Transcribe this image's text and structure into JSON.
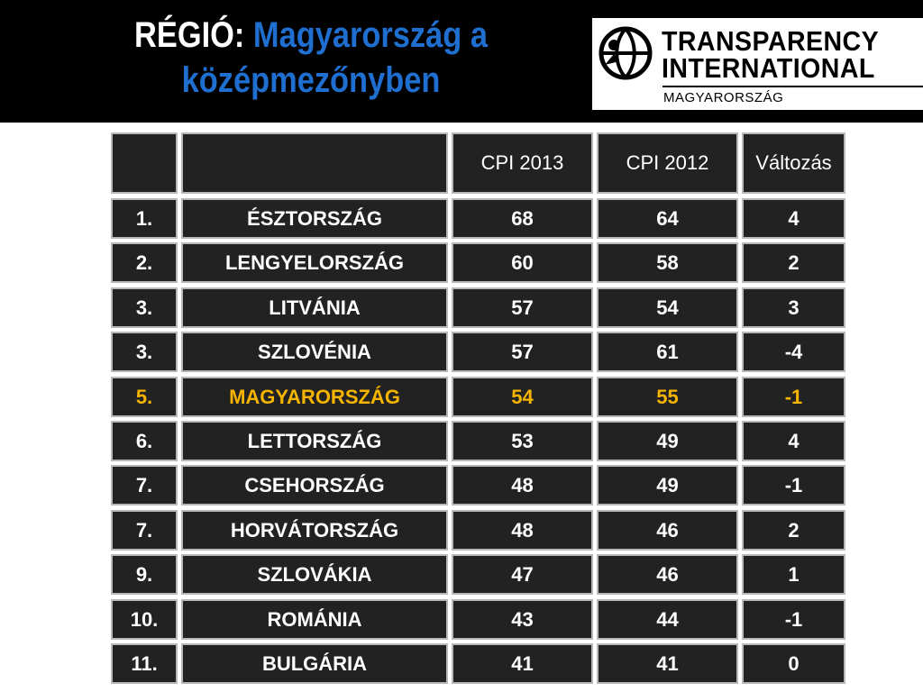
{
  "title": {
    "prefix": "RÉGIÓ:",
    "text": "Magyarország a középmezőnyben"
  },
  "logo": {
    "line1": "TRANSPARENCY",
    "line2": "INTERNATIONAL",
    "line3": "MAGYARORSZÁG"
  },
  "colors": {
    "header_bg": "#000000",
    "title_white": "#ffffff",
    "title_blue": "#1f6fd1",
    "cell_bg": "#222222",
    "highlight": "#f5b400"
  },
  "chart_data": {
    "type": "table",
    "columns": [
      "",
      "",
      "CPI 2013",
      "CPI 2012",
      "Változás"
    ],
    "rows": [
      {
        "rank": "1.",
        "country": "ÉSZTORSZÁG",
        "cpi2013": "68",
        "cpi2012": "64",
        "change": "4",
        "highlight": false
      },
      {
        "rank": "2.",
        "country": "LENGYELORSZÁG",
        "cpi2013": "60",
        "cpi2012": "58",
        "change": "2",
        "highlight": false
      },
      {
        "rank": "3.",
        "country": "LITVÁNIA",
        "cpi2013": "57",
        "cpi2012": "54",
        "change": "3",
        "highlight": false
      },
      {
        "rank": "3.",
        "country": "SZLOVÉNIA",
        "cpi2013": "57",
        "cpi2012": "61",
        "change": "-4",
        "highlight": false
      },
      {
        "rank": "5.",
        "country": "MAGYARORSZÁG",
        "cpi2013": "54",
        "cpi2012": "55",
        "change": "-1",
        "highlight": true
      },
      {
        "rank": "6.",
        "country": "LETTORSZÁG",
        "cpi2013": "53",
        "cpi2012": "49",
        "change": "4",
        "highlight": false
      },
      {
        "rank": "7.",
        "country": "CSEHORSZÁG",
        "cpi2013": "48",
        "cpi2012": "49",
        "change": "-1",
        "highlight": false
      },
      {
        "rank": "7.",
        "country": "HORVÁTORSZÁG",
        "cpi2013": "48",
        "cpi2012": "46",
        "change": "2",
        "highlight": false
      },
      {
        "rank": "9.",
        "country": "SZLOVÁKIA",
        "cpi2013": "47",
        "cpi2012": "46",
        "change": "1",
        "highlight": false
      },
      {
        "rank": "10.",
        "country": "ROMÁNIA",
        "cpi2013": "43",
        "cpi2012": "44",
        "change": "-1",
        "highlight": false
      },
      {
        "rank": "11.",
        "country": "BULGÁRIA",
        "cpi2013": "41",
        "cpi2012": "41",
        "change": "0",
        "highlight": false
      }
    ]
  }
}
